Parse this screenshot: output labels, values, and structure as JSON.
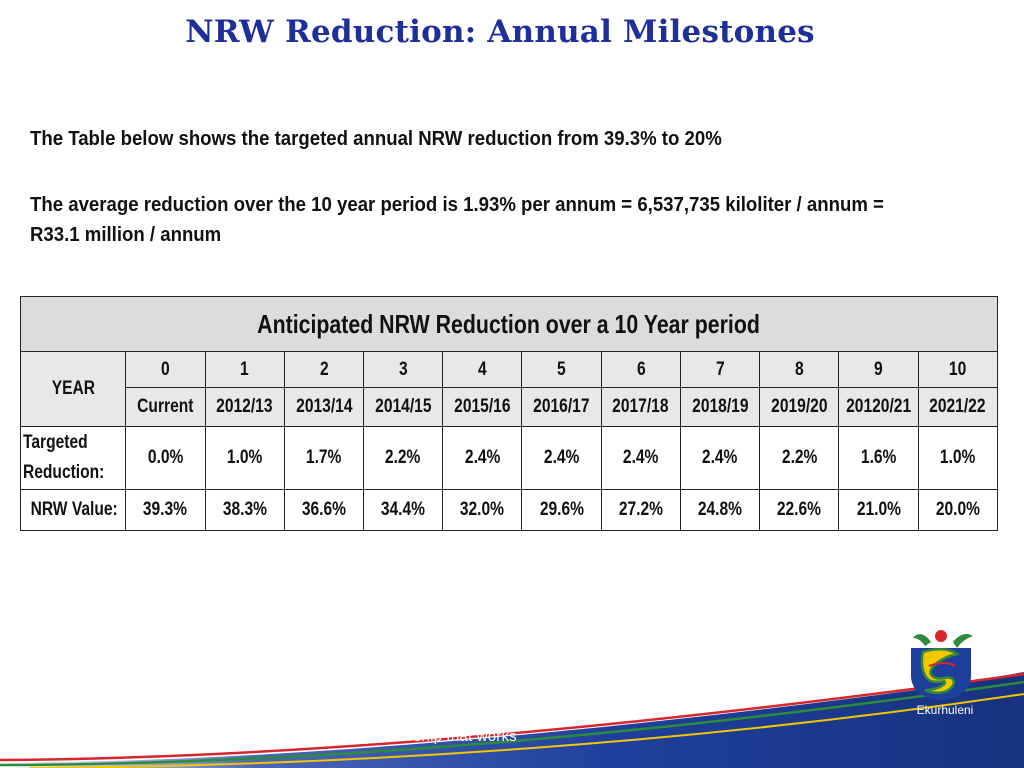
{
  "title": "NRW Reduction: Annual Milestones",
  "paragraph1": "The Table below shows the targeted annual NRW reduction from 39.3% to 20%",
  "paragraph2": "The average reduction over the 10 year period is 1.93% per annum  =  6,537,735 kiloliter / annum  =  R33.1 million / annum",
  "table": {
    "header": "Anticipated NRW Reduction over a 10 Year period",
    "year_label": "YEAR",
    "year_numbers": [
      "0",
      "1",
      "2",
      "3",
      "4",
      "5",
      "6",
      "7",
      "8",
      "9",
      "10"
    ],
    "periods": [
      "Current",
      "2012/13",
      "2013/14",
      "2014/15",
      "2015/16",
      "2016/17",
      "2017/18",
      "2018/19",
      "2019/20",
      "20120/21",
      "2021/22"
    ],
    "targeted_label_line1": "Targeted",
    "targeted_label_line2": "Reduction:",
    "targeted": [
      "0.0%",
      "1.0%",
      "1.7%",
      "2.2%",
      "2.4%",
      "2.4%",
      "2.4%",
      "2.4%",
      "2.2%",
      "1.6%",
      "1.0%"
    ],
    "nrw_label": "NRW Value:",
    "nrw": [
      "39.3%",
      "38.3%",
      "36.6%",
      "34.4%",
      "32.0%",
      "29.6%",
      "27.2%",
      "24.8%",
      "22.6%",
      "21.0%",
      "20.0%"
    ]
  },
  "footer": {
    "tagline": "a partnership that works",
    "logo_name": "Ekurhuleni",
    "colors": {
      "blue": "#1f3f9c",
      "red": "#d8262c",
      "green": "#2e8b3a",
      "yellow": "#f2c600"
    }
  }
}
